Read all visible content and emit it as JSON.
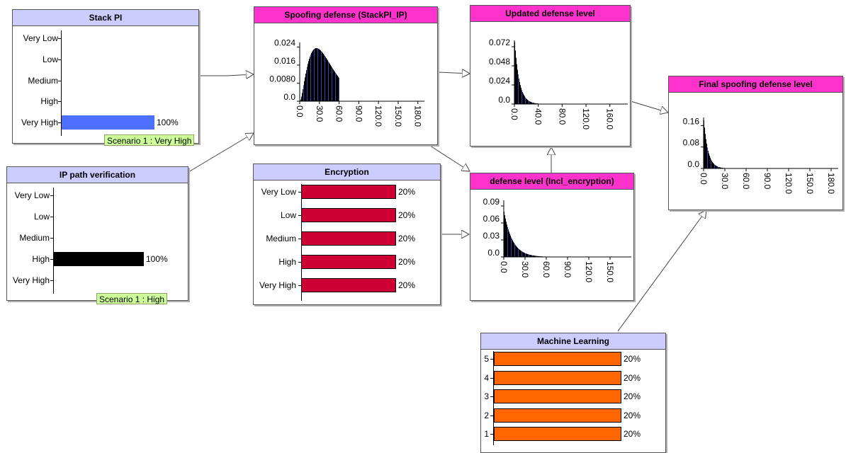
{
  "nodes": {
    "stack_pi": {
      "title": "Stack PI",
      "states": [
        {
          "label": "Very Low",
          "value": 0,
          "pct": ""
        },
        {
          "label": "Low",
          "value": 0,
          "pct": ""
        },
        {
          "label": "Medium",
          "value": 0,
          "pct": ""
        },
        {
          "label": "High",
          "value": 0,
          "pct": ""
        },
        {
          "label": "Very High",
          "value": 1,
          "pct": "100%"
        }
      ],
      "bar_color": "#4d6fff",
      "scenario": "Scenario 1 : Very High"
    },
    "ip_path": {
      "title": "IP path verification",
      "states": [
        {
          "label": "Very Low",
          "value": 0,
          "pct": ""
        },
        {
          "label": "Low",
          "value": 0,
          "pct": ""
        },
        {
          "label": "Medium",
          "value": 0,
          "pct": ""
        },
        {
          "label": "High",
          "value": 1,
          "pct": "100%"
        },
        {
          "label": "Very High",
          "value": 0,
          "pct": ""
        }
      ],
      "bar_color": "#000000",
      "scenario": "Scenario 1 : High"
    },
    "encryption": {
      "title": "Encryption",
      "states": [
        {
          "label": "Very Low",
          "value": 0.2,
          "pct": "20%"
        },
        {
          "label": "Low",
          "value": 0.2,
          "pct": "20%"
        },
        {
          "label": "Medium",
          "value": 0.2,
          "pct": "20%"
        },
        {
          "label": "High",
          "value": 0.2,
          "pct": "20%"
        },
        {
          "label": "Very High",
          "value": 0.2,
          "pct": "20%"
        }
      ],
      "bar_color": "#cc0033"
    },
    "machine_learning": {
      "title": "Machine Learning",
      "states": [
        {
          "label": "5",
          "value": 0.2,
          "pct": "20%"
        },
        {
          "label": "4",
          "value": 0.2,
          "pct": "20%"
        },
        {
          "label": "3",
          "value": 0.2,
          "pct": "20%"
        },
        {
          "label": "2",
          "value": 0.2,
          "pct": "20%"
        },
        {
          "label": "1",
          "value": 0.2,
          "pct": "20%"
        }
      ],
      "bar_color": "#ff6600"
    },
    "spoofing": {
      "title": "Spoofing defense (StackPI_IP)"
    },
    "updated": {
      "title": "Updated defense level"
    },
    "incl_enc": {
      "title": "defense level (Incl_encryption)"
    },
    "final": {
      "title": "Final spoofing defense level"
    }
  },
  "chart_data": [
    {
      "name": "Spoofing defense (StackPI_IP)",
      "type": "bar",
      "y_ticks": [
        "0.024",
        "0.016",
        "0.0080",
        "0.0"
      ],
      "y_tick_values": [
        0.024,
        0.016,
        0.008,
        0.0
      ],
      "ylim": [
        0,
        0.026
      ],
      "x_ticks": [
        "0.0",
        "30.0",
        "60.0",
        "90.0",
        "120.0",
        "150.0",
        "180.0"
      ],
      "x_tick_values": [
        0,
        30,
        60,
        90,
        120,
        150,
        180
      ],
      "xlim": [
        0,
        190
      ],
      "distribution": {
        "shape": "gamma",
        "mode": 25,
        "peak": 0.0235,
        "k": 2.6,
        "end": 60
      }
    },
    {
      "name": "Updated defense level",
      "type": "bar",
      "y_ticks": [
        "0.072",
        "0.048",
        "0.024",
        "0.0"
      ],
      "y_tick_values": [
        0.072,
        0.048,
        0.024,
        0.0
      ],
      "ylim": [
        0,
        0.08
      ],
      "x_ticks": [
        "0.0",
        "40.0",
        "80.0",
        "120.0",
        "160.0"
      ],
      "x_tick_values": [
        0,
        40,
        80,
        120,
        160
      ],
      "xlim": [
        0,
        190
      ],
      "distribution": {
        "shape": "exp",
        "peak": 0.078,
        "scale": 8,
        "end": 42
      }
    },
    {
      "name": "defense level (Incl_encryption)",
      "type": "bar",
      "y_ticks": [
        "0.09",
        "0.06",
        "0.03",
        "0.0"
      ],
      "y_tick_values": [
        0.09,
        0.06,
        0.03,
        0.0
      ],
      "ylim": [
        0,
        0.1
      ],
      "x_ticks": [
        "0.0",
        "30.0",
        "60.0",
        "90.0",
        "120.0",
        "150.0"
      ],
      "x_tick_values": [
        0,
        30,
        60,
        90,
        120,
        150
      ],
      "xlim": [
        0,
        180
      ],
      "distribution": {
        "shape": "exp",
        "peak": 0.08,
        "scale": 12,
        "end": 55
      }
    },
    {
      "name": "Final spoofing defense level",
      "type": "bar",
      "y_ticks": [
        "0.16",
        "0.08",
        "0.0"
      ],
      "y_tick_values": [
        0.16,
        0.08,
        0.0
      ],
      "ylim": [
        0,
        0.19
      ],
      "x_ticks": [
        "0.0",
        "30.0",
        "60.0",
        "90.0",
        "120.0",
        "150.0",
        "180.0"
      ],
      "x_tick_values": [
        0,
        30,
        60,
        90,
        120,
        150,
        180
      ],
      "xlim": [
        0,
        190
      ],
      "distribution": {
        "shape": "exp",
        "peak": 0.18,
        "scale": 6,
        "end": 30
      }
    }
  ]
}
